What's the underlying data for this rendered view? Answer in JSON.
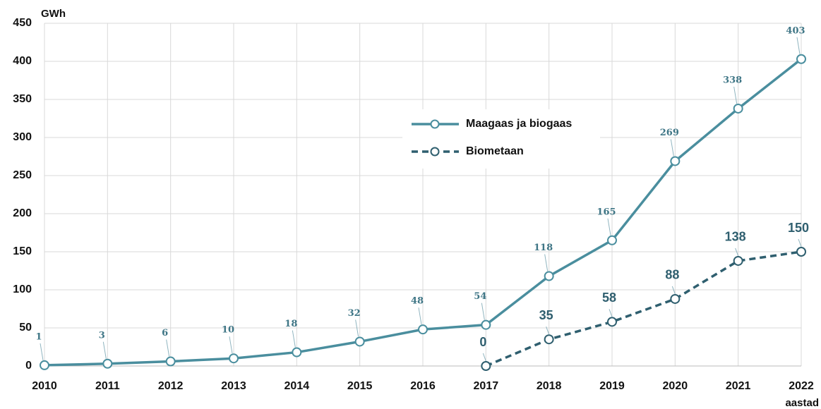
{
  "chart_data": {
    "type": "line",
    "x": [
      2010,
      2011,
      2012,
      2013,
      2014,
      2015,
      2016,
      2017,
      2018,
      2019,
      2020,
      2021,
      2022
    ],
    "series": [
      {
        "name": "Maagaas ja biogaas",
        "color": "#4a8e9e",
        "dash": false,
        "values": [
          1,
          3,
          6,
          10,
          18,
          32,
          48,
          54,
          118,
          165,
          269,
          338,
          403
        ]
      },
      {
        "name": "Biometaan",
        "color": "#2f5f6f",
        "dash": true,
        "values": [
          null,
          null,
          null,
          null,
          null,
          null,
          null,
          0,
          35,
          58,
          88,
          138,
          150
        ]
      }
    ],
    "y_label": "GWh",
    "x_label": "aastad",
    "xlim": [
      2010,
      2022
    ],
    "xticks": [
      2010,
      2011,
      2012,
      2013,
      2014,
      2015,
      2016,
      2017,
      2018,
      2019,
      2020,
      2021,
      2022
    ],
    "ylim": [
      0,
      450
    ],
    "yticks": [
      0,
      50,
      100,
      150,
      200,
      250,
      300,
      350,
      400,
      450
    ],
    "grid": true,
    "legend": "center"
  }
}
